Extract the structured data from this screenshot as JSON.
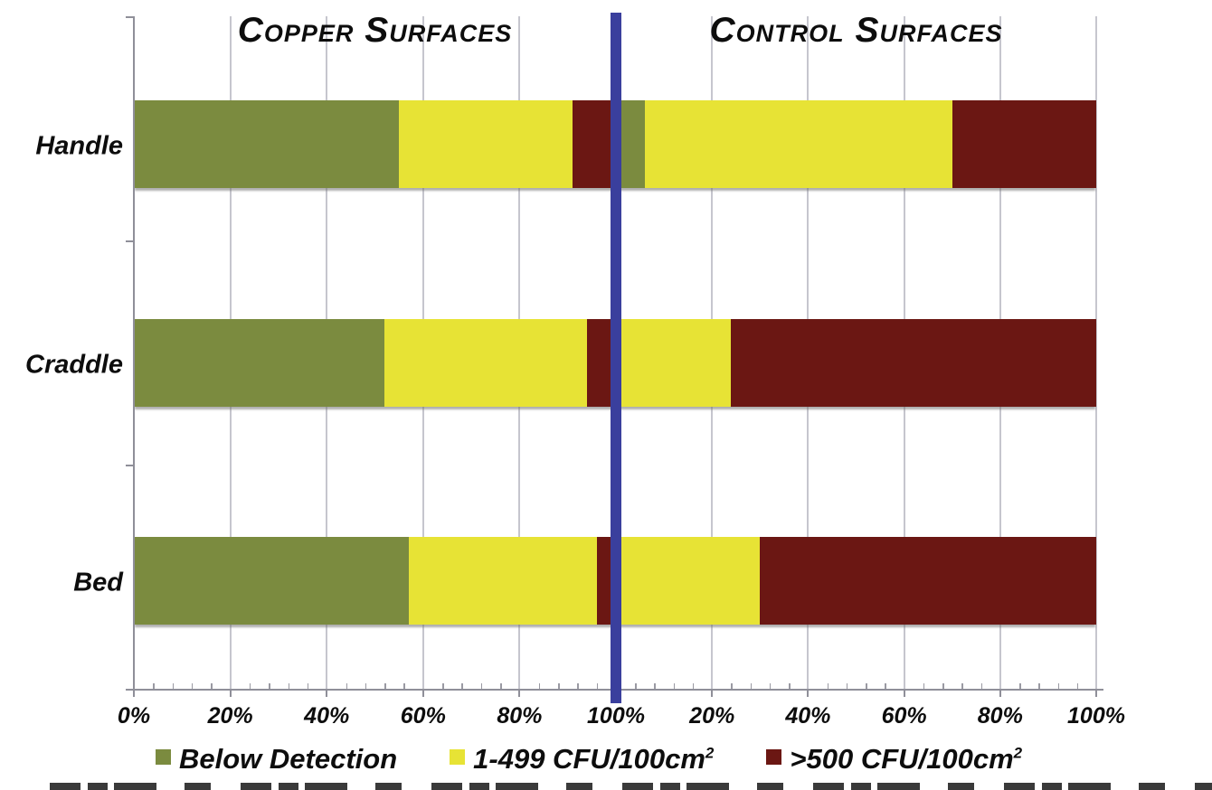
{
  "titles": {
    "left": "Copper Surfaces",
    "right": "Control Surfaces"
  },
  "categories": [
    "Handle",
    "Craddle",
    "Bed"
  ],
  "legend": {
    "items": [
      {
        "label": "Below Detection",
        "sup": "",
        "color": "#7b8b3f"
      },
      {
        "label": "1-499 CFU/100cm",
        "sup": "2",
        "color": "#e7e335"
      },
      {
        "label": ">500 CFU/100cm",
        "sup": "2",
        "color": "#6b1713"
      }
    ]
  },
  "axis": {
    "tick_labels": [
      "0%",
      "20%",
      "40%",
      "60%",
      "80%",
      "100%",
      "20%",
      "40%",
      "60%",
      "80%",
      "100%"
    ]
  },
  "colors": {
    "below_detection": "#7b8b3f",
    "mid_cfu": "#e7e335",
    "high_cfu": "#6b1713",
    "divider": "#3a3f9d",
    "gridline": "#c6c6ce",
    "axis": "#8f8f99",
    "text": "#0d0d0d"
  },
  "chart_data": {
    "type": "bar",
    "orientation": "horizontal-stacked",
    "categories": [
      "Handle",
      "Craddle",
      "Bed"
    ],
    "xlim": [
      0,
      100
    ],
    "x_ticks": [
      0,
      20,
      40,
      60,
      80,
      100
    ],
    "x_tick_format": "percent",
    "grid": true,
    "legend_position": "bottom",
    "panels": [
      {
        "name": "Copper Surfaces",
        "series": [
          {
            "name": "Below Detection",
            "values": [
              55,
              52,
              57
            ]
          },
          {
            "name": "1-499 CFU/100cm2",
            "values": [
              36,
              42,
              39
            ]
          },
          {
            "name": ">500 CFU/100cm2",
            "values": [
              9,
              6,
              4
            ]
          }
        ]
      },
      {
        "name": "Control Surfaces",
        "series": [
          {
            "name": "Below Detection",
            "values": [
              6,
              0,
              0
            ]
          },
          {
            "name": "1-499 CFU/100cm2",
            "values": [
              64,
              24,
              30
            ]
          },
          {
            "name": ">500 CFU/100cm2",
            "values": [
              30,
              76,
              70
            ]
          }
        ]
      }
    ]
  }
}
